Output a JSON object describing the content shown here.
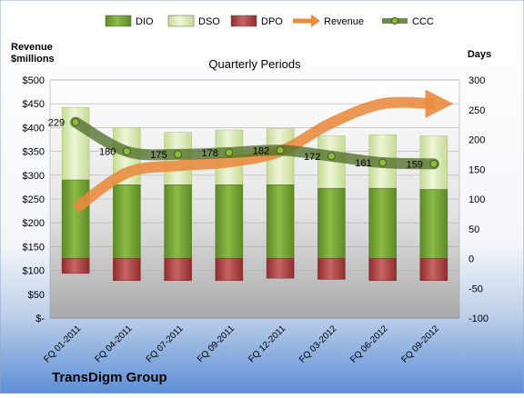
{
  "chart_data": {
    "type": "bar",
    "title": "Quarterly Periods",
    "company": "TransDigm Group",
    "ylabel_left": "Revenue\n$millions",
    "ylabel_right": "Days",
    "categories": [
      "FQ 01-2011",
      "FQ 04-2011",
      "FQ 07-2011",
      "FQ 09-2011",
      "FQ 12-2011",
      "FQ 03-2012",
      "FQ 06-2012",
      "FQ 09-2012"
    ],
    "left_ticks": [
      "$-",
      "$50",
      "$100",
      "$150",
      "$200",
      "$250",
      "$300",
      "$350",
      "$400",
      "$450",
      "$500"
    ],
    "right_ticks": [
      "-100",
      "-50",
      "0",
      "50",
      "100",
      "150",
      "200",
      "250",
      "300"
    ],
    "left_ylim": [
      0,
      500
    ],
    "right_ylim": [
      -100,
      300
    ],
    "series": [
      {
        "name": "DIO",
        "axis": "right",
        "values": [
          132,
          124,
          124,
          124,
          124,
          118,
          118,
          116
        ]
      },
      {
        "name": "DSO",
        "axis": "right",
        "values": [
          122,
          96,
          88,
          92,
          94,
          88,
          90,
          90
        ]
      },
      {
        "name": "DPO",
        "axis": "right",
        "values": [
          -25,
          -37,
          -37,
          -37,
          -33,
          -35,
          -37,
          -37
        ]
      },
      {
        "name": "Revenue",
        "axis": "left",
        "type": "arrow",
        "values": [
          230,
          305,
          320,
          328,
          350,
          410,
          450,
          450
        ]
      },
      {
        "name": "CCC",
        "axis": "right",
        "type": "line",
        "values": [
          229,
          180,
          175,
          178,
          182,
          172,
          161,
          159
        ]
      }
    ],
    "ccc_labels": [
      "229",
      "180",
      "175",
      "178",
      "182",
      "172",
      "161",
      "159"
    ],
    "legend_position": "top",
    "colors": {
      "DIO": "#7fa83a",
      "DSO": "#d9e8b3",
      "DPO": "#b24a4a",
      "Revenue": "#e98a3e",
      "CCC": "#4e6b24"
    }
  }
}
